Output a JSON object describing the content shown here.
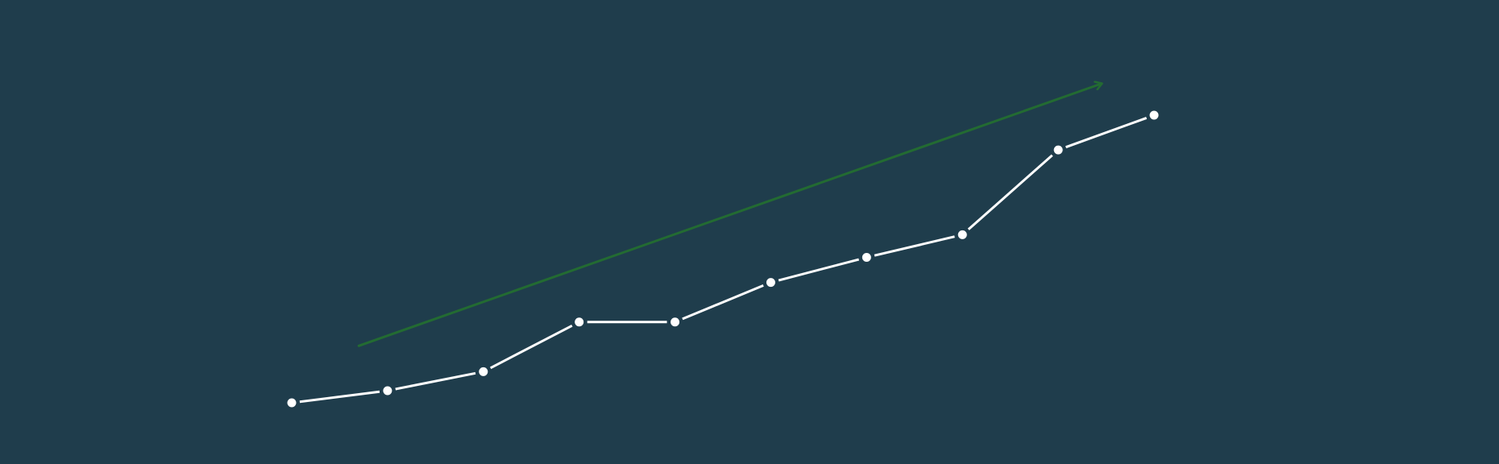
{
  "colors": {
    "background": "#1f3d4c",
    "line": "#ffffff",
    "marker_fill": "#ffffff",
    "trend_arrow": "#236b32"
  },
  "chart_data": {
    "type": "line",
    "title": "",
    "xlabel": "",
    "ylabel": "",
    "x": [
      1,
      2,
      3,
      4,
      5,
      6,
      7,
      8,
      9,
      10
    ],
    "series": [
      {
        "values": [
          0.0,
          3.0,
          7.7,
          20.0,
          20.0,
          29.8,
          36.0,
          41.6,
          62.6,
          71.2
        ],
        "color": "#ffffff",
        "markers": "circle",
        "line_style": "solid"
      }
    ],
    "annotations": [
      {
        "kind": "trend-arrow",
        "color": "#236b32",
        "from": {
          "x": 1.7,
          "y": 14.1
        },
        "to": {
          "x": 9.45,
          "y": 79.0
        }
      }
    ],
    "xlim": [
      1,
      10
    ],
    "ylim": [
      0,
      71.2
    ],
    "grid": false,
    "axes_visible": false,
    "legend": "none"
  }
}
